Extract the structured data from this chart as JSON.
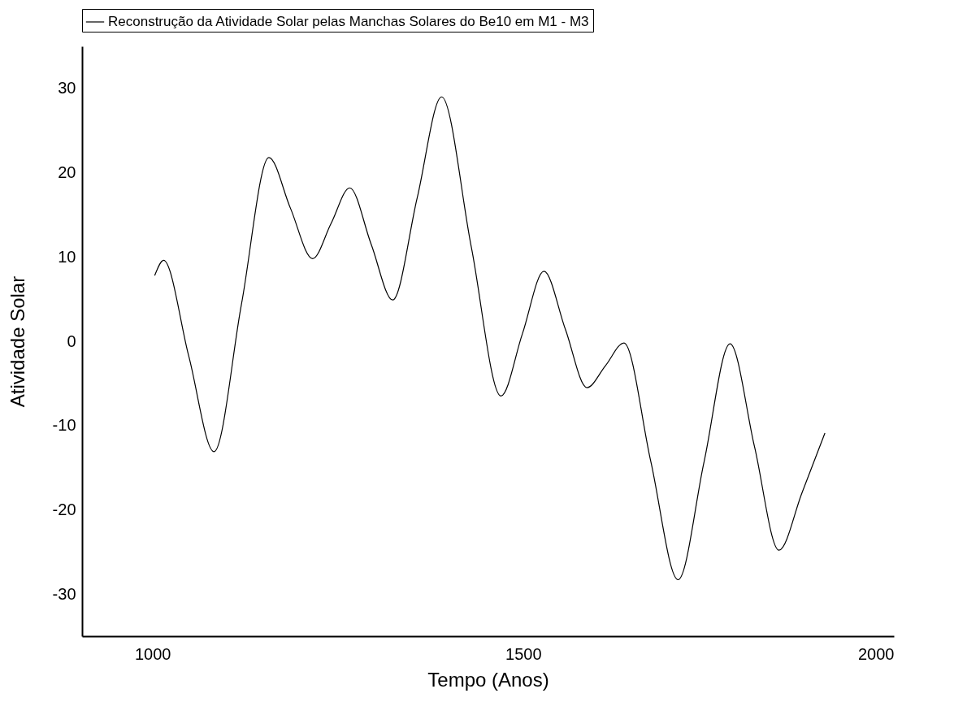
{
  "chart_data": {
    "type": "line",
    "xlabel": "Tempo (Anos)",
    "ylabel": "Atividade Solar",
    "xlim": [
      905,
      2000
    ],
    "ylim": [
      -35,
      35
    ],
    "xticks": [
      1000,
      1500,
      2000
    ],
    "yticks": [
      -30,
      -20,
      -10,
      0,
      10,
      20,
      30
    ],
    "grid": false,
    "legend": "top",
    "line_style": "solid",
    "marker": "none",
    "series": [
      {
        "name": "Reconstrução da Atividade Solar pelas Manchas Solares do Be10 em M1 - M3",
        "color": "#000000",
        "x": [
          1003,
          1015,
          1049,
          1083,
          1120,
          1157,
          1186,
          1216,
          1241,
          1266,
          1295,
          1324,
          1357,
          1390,
          1430,
          1470,
          1499,
          1528,
          1557,
          1586,
          1611,
          1636,
          1672,
          1709,
          1744,
          1779,
          1812,
          1845,
          1876,
          1907
        ],
        "values": [
          7.8,
          9.6,
          -1.8,
          -13.1,
          4.4,
          21.8,
          15.8,
          9.8,
          14.0,
          18.2,
          11.5,
          4.9,
          17.0,
          29.0,
          11.2,
          -6.5,
          0.9,
          8.3,
          1.4,
          -5.5,
          -2.9,
          -0.2,
          -14.2,
          -28.3,
          -14.3,
          -0.3,
          -12.5,
          -24.8,
          -18.0,
          -10.9
        ]
      }
    ]
  }
}
